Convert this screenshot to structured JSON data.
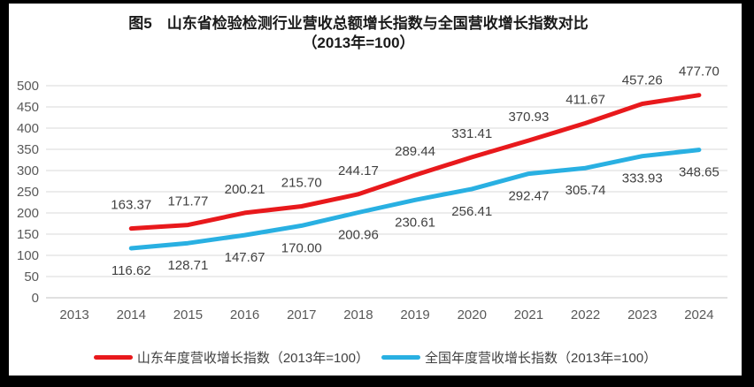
{
  "title": {
    "line1": "图5　山东省检验检测行业营收总额增长指数与全国营收增长指数对比",
    "line2": "（2013年=100）"
  },
  "chart_data": {
    "type": "line",
    "title": "图5 山东省检验检测行业营收总额增长指数与全国营收增长指数对比（2013年=100）",
    "categories": [
      "2013",
      "2014",
      "2015",
      "2016",
      "2017",
      "2018",
      "2019",
      "2020",
      "2021",
      "2022",
      "2023",
      "2024"
    ],
    "series": [
      {
        "name": "山东年度营收增长指数（2013年=100）",
        "color": "#e8191c",
        "values": [
          null,
          163.37,
          171.77,
          200.21,
          215.7,
          244.17,
          289.44,
          331.41,
          370.93,
          411.67,
          457.26,
          477.7
        ],
        "label_offset": -27
      },
      {
        "name": "全国年度营收增长指数（2013年=100）",
        "color": "#29b0e2",
        "values": [
          null,
          116.62,
          128.71,
          147.67,
          170.0,
          200.96,
          230.61,
          256.41,
          292.47,
          305.74,
          333.93,
          348.65
        ],
        "label_offset": 25
      }
    ],
    "ylim": [
      0,
      500
    ],
    "ytick_step": 50,
    "grid": true,
    "legend_position": "bottom",
    "colors": {
      "gridline": "#d9d9d9",
      "axis_line": "#c0c0c0",
      "tick_label": "#595959",
      "data_label": "#404040"
    }
  }
}
